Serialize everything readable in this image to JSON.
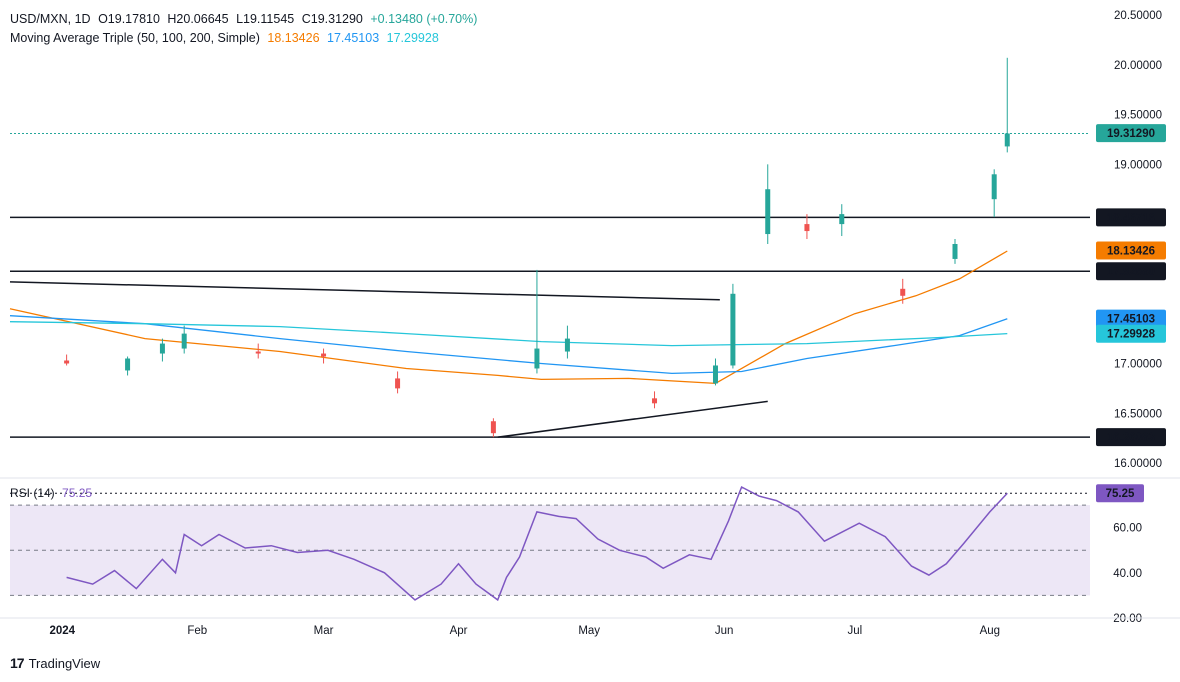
{
  "header": {
    "symbol": "USD/MXN, 1D",
    "open": "O19.17810",
    "high": "H20.06645",
    "low": "L19.11545",
    "close": "C19.31290",
    "change": "+0.13480 (+0.70%)",
    "ma_label": "Moving Average Triple (50, 100, 200, Simple)",
    "ma50": "18.13426",
    "ma100": "17.45103",
    "ma200": "17.29928",
    "rsi_label": "RSI (14)",
    "rsi_value": "75.25"
  },
  "branding": {
    "logo_text": "TradingView"
  },
  "colors": {
    "up": "#26a69a",
    "down": "#ef5350",
    "ma50": "#f57c00",
    "ma100": "#2196f3",
    "ma200": "#26c6da",
    "rsi": "#7e57c2",
    "rsi_band": "#ede7f6",
    "levels": "#131722"
  },
  "chart_data": [
    {
      "type": "candlestick",
      "title": "USD/MXN, 1D",
      "ylim": [
        15.85,
        20.55
      ],
      "y_ticks": [
        "20.50000",
        "20.00000",
        "19.50000",
        "19.00000",
        "17.00000",
        "16.50000",
        "16.00000"
      ],
      "x_ticks": [
        "2024",
        "Feb",
        "Mar",
        "Apr",
        "May",
        "Jun",
        "Jul",
        "Aug"
      ],
      "x_range": [
        "2023-12-20",
        "2024-08-24"
      ],
      "ohlc_points": [
        {
          "d": "2024-01-02",
          "o": 17.03,
          "h": 17.09,
          "l": 16.98,
          "c": 17.0
        },
        {
          "d": "2024-01-16",
          "o": 16.93,
          "h": 17.07,
          "l": 16.88,
          "c": 17.05
        },
        {
          "d": "2024-01-24",
          "o": 17.1,
          "h": 17.25,
          "l": 17.02,
          "c": 17.2
        },
        {
          "d": "2024-01-29",
          "o": 17.15,
          "h": 17.38,
          "l": 17.1,
          "c": 17.3
        },
        {
          "d": "2024-02-15",
          "o": 17.12,
          "h": 17.2,
          "l": 17.05,
          "c": 17.1
        },
        {
          "d": "2024-03-01",
          "o": 17.1,
          "h": 17.15,
          "l": 17.0,
          "c": 17.07
        },
        {
          "d": "2024-03-18",
          "o": 16.85,
          "h": 16.92,
          "l": 16.7,
          "c": 16.75
        },
        {
          "d": "2024-04-09",
          "o": 16.42,
          "h": 16.45,
          "l": 16.26,
          "c": 16.3
        },
        {
          "d": "2024-04-19",
          "o": 16.95,
          "h": 17.94,
          "l": 16.9,
          "c": 17.15
        },
        {
          "d": "2024-04-26",
          "o": 17.12,
          "h": 17.38,
          "l": 17.05,
          "c": 17.25
        },
        {
          "d": "2024-05-16",
          "o": 16.65,
          "h": 16.72,
          "l": 16.55,
          "c": 16.6
        },
        {
          "d": "2024-05-30",
          "o": 16.8,
          "h": 17.05,
          "l": 16.78,
          "c": 16.98
        },
        {
          "d": "2024-06-03",
          "o": 16.98,
          "h": 17.8,
          "l": 16.95,
          "c": 17.7
        },
        {
          "d": "2024-06-11",
          "o": 18.3,
          "h": 19.0,
          "l": 18.2,
          "c": 18.75
        },
        {
          "d": "2024-06-20",
          "o": 18.4,
          "h": 18.5,
          "l": 18.25,
          "c": 18.33
        },
        {
          "d": "2024-06-28",
          "o": 18.4,
          "h": 18.6,
          "l": 18.28,
          "c": 18.5
        },
        {
          "d": "2024-07-12",
          "o": 17.75,
          "h": 17.85,
          "l": 17.6,
          "c": 17.68
        },
        {
          "d": "2024-07-24",
          "o": 18.05,
          "h": 18.25,
          "l": 18.0,
          "c": 18.2
        },
        {
          "d": "2024-08-02",
          "o": 18.65,
          "h": 18.95,
          "l": 18.47,
          "c": 18.9
        },
        {
          "d": "2024-08-05",
          "o": 19.18,
          "h": 20.07,
          "l": 19.12,
          "c": 19.31
        }
      ],
      "series": [
        {
          "name": "MA 50",
          "key": "ma50",
          "points": [
            [
              "2023-12-20",
              17.55
            ],
            [
              "2024-01-20",
              17.25
            ],
            [
              "2024-02-20",
              17.12
            ],
            [
              "2024-03-20",
              16.95
            ],
            [
              "2024-04-10",
              16.88
            ],
            [
              "2024-04-20",
              16.84
            ],
            [
              "2024-05-10",
              16.85
            ],
            [
              "2024-05-30",
              16.8
            ],
            [
              "2024-06-15",
              17.2
            ],
            [
              "2024-07-01",
              17.5
            ],
            [
              "2024-07-15",
              17.68
            ],
            [
              "2024-07-25",
              17.85
            ],
            [
              "2024-08-05",
              18.13
            ]
          ]
        },
        {
          "name": "MA 100",
          "key": "ma100",
          "points": [
            [
              "2023-12-20",
              17.48
            ],
            [
              "2024-01-20",
              17.4
            ],
            [
              "2024-02-20",
              17.25
            ],
            [
              "2024-03-20",
              17.12
            ],
            [
              "2024-04-20",
              17.0
            ],
            [
              "2024-05-20",
              16.9
            ],
            [
              "2024-06-05",
              16.92
            ],
            [
              "2024-06-20",
              17.05
            ],
            [
              "2024-07-10",
              17.18
            ],
            [
              "2024-07-25",
              17.28
            ],
            [
              "2024-08-05",
              17.45
            ]
          ]
        },
        {
          "name": "MA 200",
          "key": "ma200",
          "points": [
            [
              "2023-12-20",
              17.42
            ],
            [
              "2024-01-20",
              17.4
            ],
            [
              "2024-02-20",
              17.37
            ],
            [
              "2024-03-20",
              17.3
            ],
            [
              "2024-04-20",
              17.22
            ],
            [
              "2024-05-20",
              17.18
            ],
            [
              "2024-06-20",
              17.2
            ],
            [
              "2024-07-20",
              17.26
            ],
            [
              "2024-08-05",
              17.3
            ]
          ]
        }
      ],
      "levels": [
        {
          "label": "18.46716",
          "value": 18.46716
        },
        {
          "label": "17.92680",
          "value": 17.9268
        },
        {
          "label": "16.26083",
          "value": 16.26083
        }
      ],
      "price_labels": [
        {
          "label": "19.31290",
          "value": 19.3129,
          "color": "#26a69a"
        },
        {
          "label": "18.46716",
          "value": 18.46716,
          "color": "#131722"
        },
        {
          "label": "18.13426",
          "value": 18.13426,
          "color": "#f57c00"
        },
        {
          "label": "17.92680",
          "value": 17.9268,
          "color": "#131722"
        },
        {
          "label": "17.45103",
          "value": 17.45103,
          "color": "#2196f3"
        },
        {
          "label": "17.29928",
          "value": 17.29928,
          "color": "#26c6da"
        },
        {
          "label": "16.26083",
          "value": 16.26083,
          "color": "#131722"
        }
      ],
      "trendlines": [
        {
          "from": [
            "2023-12-20",
            17.82
          ],
          "to": [
            "2024-05-31",
            17.64
          ]
        },
        {
          "from": [
            "2024-04-10",
            16.26
          ],
          "to": [
            "2024-06-11",
            16.62
          ]
        }
      ]
    },
    {
      "type": "line",
      "title": "RSI (14)",
      "ylim": [
        20,
        82
      ],
      "y_ticks": [
        "60.00",
        "40.00",
        "20.00"
      ],
      "overbought": 70,
      "oversold": 30,
      "midline": 50,
      "last_value": 75.25,
      "series": [
        {
          "name": "RSI (14)",
          "points": [
            [
              "2024-01-02",
              38
            ],
            [
              "2024-01-08",
              35
            ],
            [
              "2024-01-13",
              41
            ],
            [
              "2024-01-18",
              33
            ],
            [
              "2024-01-24",
              46
            ],
            [
              "2024-01-27",
              40
            ],
            [
              "2024-01-29",
              57
            ],
            [
              "2024-02-02",
              52
            ],
            [
              "2024-02-06",
              57
            ],
            [
              "2024-02-12",
              51
            ],
            [
              "2024-02-18",
              52
            ],
            [
              "2024-02-24",
              49
            ],
            [
              "2024-03-02",
              50
            ],
            [
              "2024-03-08",
              46
            ],
            [
              "2024-03-15",
              40
            ],
            [
              "2024-03-22",
              28
            ],
            [
              "2024-03-28",
              35
            ],
            [
              "2024-04-01",
              44
            ],
            [
              "2024-04-05",
              35
            ],
            [
              "2024-04-10",
              28
            ],
            [
              "2024-04-12",
              38
            ],
            [
              "2024-04-15",
              47
            ],
            [
              "2024-04-19",
              67
            ],
            [
              "2024-04-24",
              65
            ],
            [
              "2024-04-28",
              64
            ],
            [
              "2024-05-03",
              55
            ],
            [
              "2024-05-08",
              50
            ],
            [
              "2024-05-14",
              47
            ],
            [
              "2024-05-18",
              42
            ],
            [
              "2024-05-24",
              48
            ],
            [
              "2024-05-29",
              46
            ],
            [
              "2024-06-02",
              63
            ],
            [
              "2024-06-05",
              78
            ],
            [
              "2024-06-09",
              74
            ],
            [
              "2024-06-13",
              72
            ],
            [
              "2024-06-18",
              67
            ],
            [
              "2024-06-24",
              54
            ],
            [
              "2024-07-02",
              62
            ],
            [
              "2024-07-08",
              56
            ],
            [
              "2024-07-14",
              43
            ],
            [
              "2024-07-18",
              39
            ],
            [
              "2024-07-22",
              44
            ],
            [
              "2024-07-26",
              53
            ],
            [
              "2024-08-01",
              67
            ],
            [
              "2024-08-05",
              75.25
            ]
          ]
        }
      ]
    }
  ]
}
